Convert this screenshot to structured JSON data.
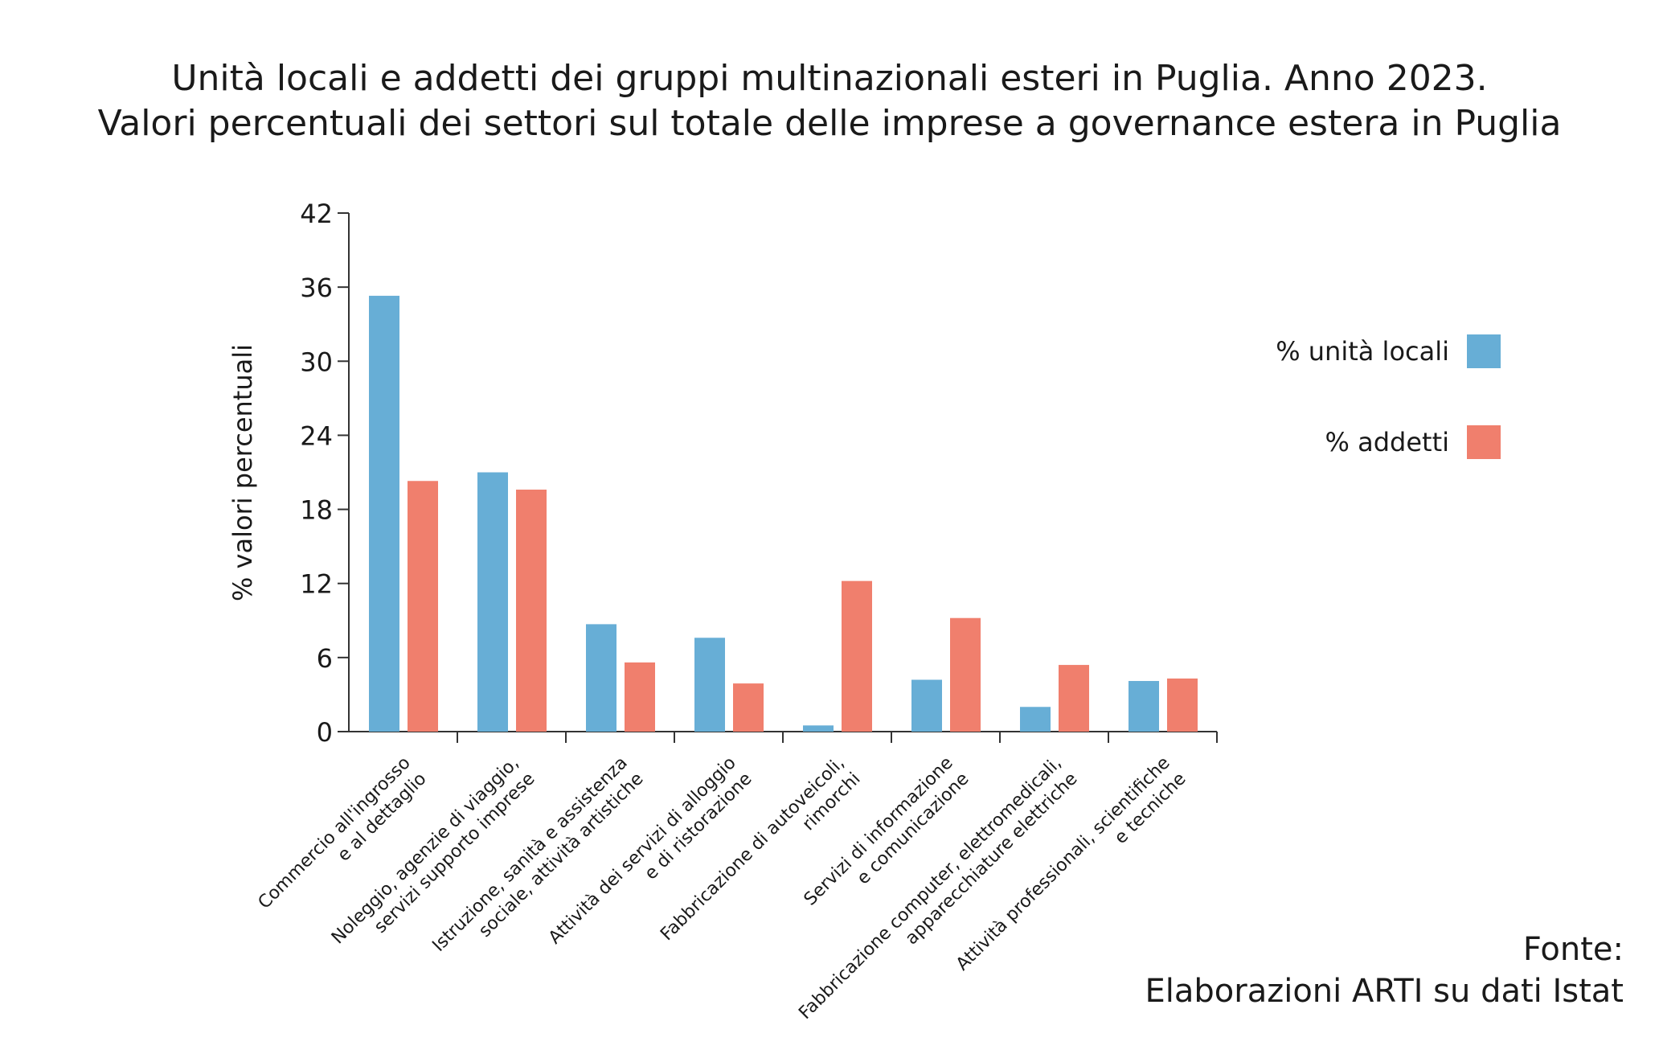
{
  "chart_data": {
    "type": "bar",
    "title": "Unità locali e addetti dei gruppi multinazionali esteri in Puglia. Anno 2023.",
    "subtitle": "Valori percentuali dei settori sul totale delle imprese a governance estera in Puglia",
    "ylabel": "% valori percentuali",
    "xlabel": "",
    "ylim": [
      0,
      42
    ],
    "yticks": [
      "0",
      "6",
      "12",
      "18",
      "24",
      "30",
      "36",
      "42"
    ],
    "grid": false,
    "legend_position": "right",
    "categories": [
      [
        "Commercio all'ingrosso",
        "e al dettaglio"
      ],
      [
        "Noleggio, agenzie di viaggio,",
        "servizi supporto imprese"
      ],
      [
        "Istruzione, sanità e assistenza",
        "sociale, attività artistiche"
      ],
      [
        "Attività dei servizi di alloggio",
        "e di ristorazione"
      ],
      [
        "Fabbricazione di autoveicoli,",
        "rimorchi"
      ],
      [
        "Servizi di informazione",
        "e comunicazione"
      ],
      [
        "Fabbricazione computer, elettromedicali,",
        "apparecchiature elettriche"
      ],
      [
        "Attività professionali, scientifiche",
        "e tecniche"
      ]
    ],
    "series": [
      {
        "name": "% unità locali",
        "color": "#67aed6",
        "values": [
          35.3,
          21.0,
          8.7,
          7.6,
          0.5,
          4.2,
          2.0,
          4.1
        ]
      },
      {
        "name": "% addetti",
        "color": "#f07f6d",
        "values": [
          20.3,
          19.6,
          5.6,
          3.9,
          12.2,
          9.2,
          5.4,
          4.3
        ]
      }
    ]
  },
  "source": {
    "label": "Fonte:",
    "text": "Elaborazioni ARTI su dati Istat"
  }
}
